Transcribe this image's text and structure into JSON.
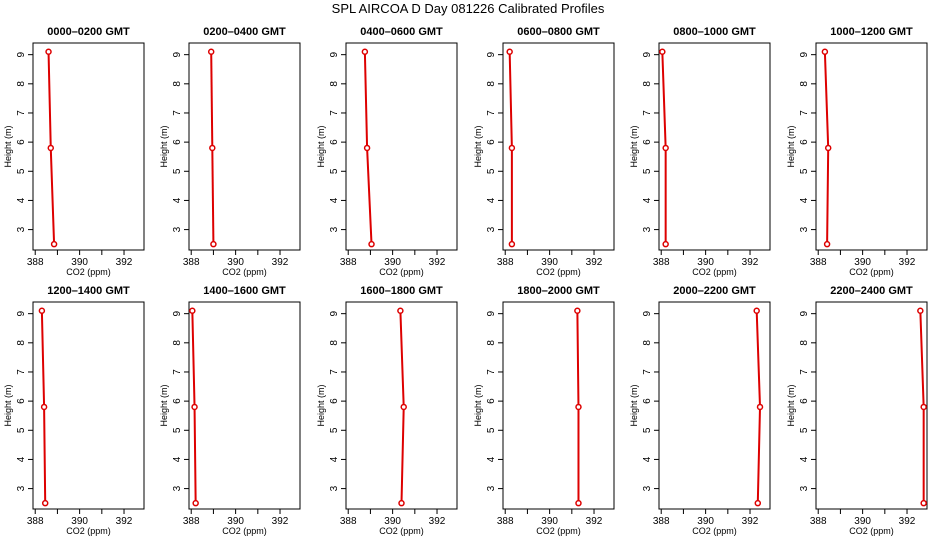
{
  "title": "SPL AIRCOA D  Day 081226  Calibrated Profiles",
  "colors": {
    "series": "#dd0000",
    "axis": "#000000"
  },
  "chart_data": {
    "type": "line",
    "xlabel": "CO2 (ppm)",
    "ylabel": "Height (m)",
    "xlim": [
      387.9,
      392.9
    ],
    "ylim": [
      2.3,
      9.4
    ],
    "xticks": [
      388,
      390,
      392
    ],
    "yticks": [
      3,
      4,
      5,
      6,
      7,
      8,
      9
    ],
    "grid": false,
    "panels": [
      {
        "title": "0000–0200 GMT",
        "points": [
          {
            "x": 388.85,
            "y": 2.5
          },
          {
            "x": 388.7,
            "y": 5.8
          },
          {
            "x": 388.6,
            "y": 9.1
          }
        ]
      },
      {
        "title": "0200–0400 GMT",
        "points": [
          {
            "x": 389.0,
            "y": 2.5
          },
          {
            "x": 388.95,
            "y": 5.8
          },
          {
            "x": 388.9,
            "y": 9.1
          }
        ]
      },
      {
        "title": "0400–0600 GMT",
        "points": [
          {
            "x": 389.05,
            "y": 2.5
          },
          {
            "x": 388.85,
            "y": 5.8
          },
          {
            "x": 388.75,
            "y": 9.1
          }
        ]
      },
      {
        "title": "0600–0800 GMT",
        "points": [
          {
            "x": 388.3,
            "y": 2.5
          },
          {
            "x": 388.3,
            "y": 5.8
          },
          {
            "x": 388.2,
            "y": 9.1
          }
        ]
      },
      {
        "title": "0800–1000 GMT",
        "points": [
          {
            "x": 388.2,
            "y": 2.5
          },
          {
            "x": 388.2,
            "y": 5.8
          },
          {
            "x": 388.05,
            "y": 9.1
          }
        ]
      },
      {
        "title": "1000–1200 GMT",
        "points": [
          {
            "x": 388.4,
            "y": 2.5
          },
          {
            "x": 388.45,
            "y": 5.8
          },
          {
            "x": 388.3,
            "y": 9.1
          }
        ]
      },
      {
        "title": "1200–1400 GMT",
        "points": [
          {
            "x": 388.45,
            "y": 2.5
          },
          {
            "x": 388.4,
            "y": 5.8
          },
          {
            "x": 388.3,
            "y": 9.1
          }
        ]
      },
      {
        "title": "1400–1600 GMT",
        "points": [
          {
            "x": 388.2,
            "y": 2.5
          },
          {
            "x": 388.15,
            "y": 5.8
          },
          {
            "x": 388.05,
            "y": 9.1
          }
        ]
      },
      {
        "title": "1600–1800 GMT",
        "points": [
          {
            "x": 390.4,
            "y": 2.5
          },
          {
            "x": 390.5,
            "y": 5.8
          },
          {
            "x": 390.35,
            "y": 9.1
          }
        ]
      },
      {
        "title": "1800–2000 GMT",
        "points": [
          {
            "x": 391.3,
            "y": 2.5
          },
          {
            "x": 391.3,
            "y": 5.8
          },
          {
            "x": 391.25,
            "y": 9.1
          }
        ]
      },
      {
        "title": "2000–2200 GMT",
        "points": [
          {
            "x": 392.35,
            "y": 2.5
          },
          {
            "x": 392.45,
            "y": 5.8
          },
          {
            "x": 392.3,
            "y": 9.1
          }
        ]
      },
      {
        "title": "2200–2400 GMT",
        "points": [
          {
            "x": 392.75,
            "y": 2.5
          },
          {
            "x": 392.75,
            "y": 5.8
          },
          {
            "x": 392.6,
            "y": 9.1
          }
        ]
      }
    ]
  }
}
